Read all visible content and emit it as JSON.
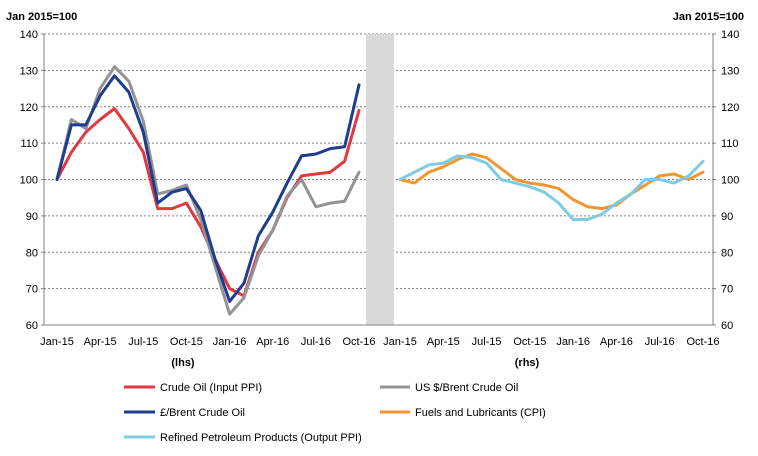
{
  "chart_data": {
    "type": "line",
    "unit_label_left": "Jan 2015=100",
    "unit_label_right": "Jan 2015=100",
    "ylim": [
      60,
      140
    ],
    "yticks": [
      60,
      70,
      80,
      90,
      100,
      110,
      120,
      130,
      140
    ],
    "grid": true,
    "legend_position": "bottom",
    "panels": [
      {
        "id": "lhs",
        "label": "(lhs)",
        "x_tick_labels": [
          "Jan-15",
          "Apr-15",
          "Jul-15",
          "Oct-15",
          "Jan-16",
          "Apr-16",
          "Jul-16",
          "Oct-16"
        ],
        "x": [
          "Jan-15",
          "Feb-15",
          "Mar-15",
          "Apr-15",
          "May-15",
          "Jun-15",
          "Jul-15",
          "Aug-15",
          "Sep-15",
          "Oct-15",
          "Nov-15",
          "Dec-15",
          "Jan-16",
          "Feb-16",
          "Mar-16",
          "Apr-16",
          "May-16",
          "Jun-16",
          "Jul-16",
          "Aug-16",
          "Sep-16",
          "Oct-16"
        ],
        "series": [
          {
            "name": "Crude Oil (Input PPI)",
            "color": "#e0393e",
            "values": [
              100,
              107.5,
              113,
              116.5,
              119.5,
              114,
              107.5,
              92,
              92,
              93.5,
              87,
              78,
              70,
              68,
              80,
              86,
              95,
              101,
              101.5,
              102,
              105,
              119
            ]
          },
          {
            "name": "US $/Brent Crude Oil",
            "color": "#939393",
            "values": [
              100,
              116.5,
              114,
              125,
              131,
              127,
              116,
              96,
              97,
              98.5,
              89,
              76,
              63,
              67.5,
              79,
              86,
              95.5,
              100,
              92.5,
              93.5,
              94,
              102
            ]
          },
          {
            "name": "£/Brent Crude Oil",
            "color": "#203c8e",
            "values": [
              100,
              115,
              115,
              123,
              128.5,
              124,
              113,
              93.5,
              96.5,
              97.5,
              91.5,
              78,
              66.5,
              71.5,
              84.5,
              91,
              99,
              106.5,
              107,
              108.5,
              109,
              126
            ]
          }
        ]
      },
      {
        "id": "rhs",
        "label": "(rhs)",
        "x_tick_labels": [
          "Jan-15",
          "Apr-15",
          "Jul-15",
          "Oct-15",
          "Jan-16",
          "Apr-16",
          "Jul-16",
          "Oct-16"
        ],
        "x": [
          "Jan-15",
          "Feb-15",
          "Mar-15",
          "Apr-15",
          "May-15",
          "Jun-15",
          "Jul-15",
          "Aug-15",
          "Sep-15",
          "Oct-15",
          "Nov-15",
          "Dec-15",
          "Jan-16",
          "Feb-16",
          "Mar-16",
          "Apr-16",
          "May-16",
          "Jun-16",
          "Jul-16",
          "Aug-16",
          "Sep-16",
          "Oct-16"
        ],
        "series": [
          {
            "name": "Fuels and Lubricants (CPI)",
            "color": "#f3962f",
            "values": [
              100,
              99,
              102,
              103.5,
              105.5,
              107,
              106,
              103,
              100,
              99,
              98.5,
              97.5,
              94.5,
              92.5,
              92,
              93,
              96,
              98.5,
              101,
              101.5,
              100,
              102
            ]
          },
          {
            "name": "Refined Petroleum Products (Output PPI)",
            "color": "#7ecbe5",
            "values": [
              100,
              102,
              104,
              104.5,
              106.5,
              106,
              104.5,
              100,
              99,
              98,
              96.5,
              93.5,
              89,
              89,
              90.5,
              93.5,
              96,
              100,
              100,
              99,
              101,
              105
            ]
          }
        ]
      }
    ],
    "legend": [
      {
        "name": "Crude Oil (Input PPI)",
        "color": "#e0393e"
      },
      {
        "name": "US $/Brent Crude Oil",
        "color": "#939393"
      },
      {
        "name": "£/Brent Crude Oil",
        "color": "#203c8e"
      },
      {
        "name": "Fuels and Lubricants (CPI)",
        "color": "#f3962f"
      },
      {
        "name": "Refined Petroleum Products (Output PPI)",
        "color": "#7ecbe5"
      }
    ]
  }
}
